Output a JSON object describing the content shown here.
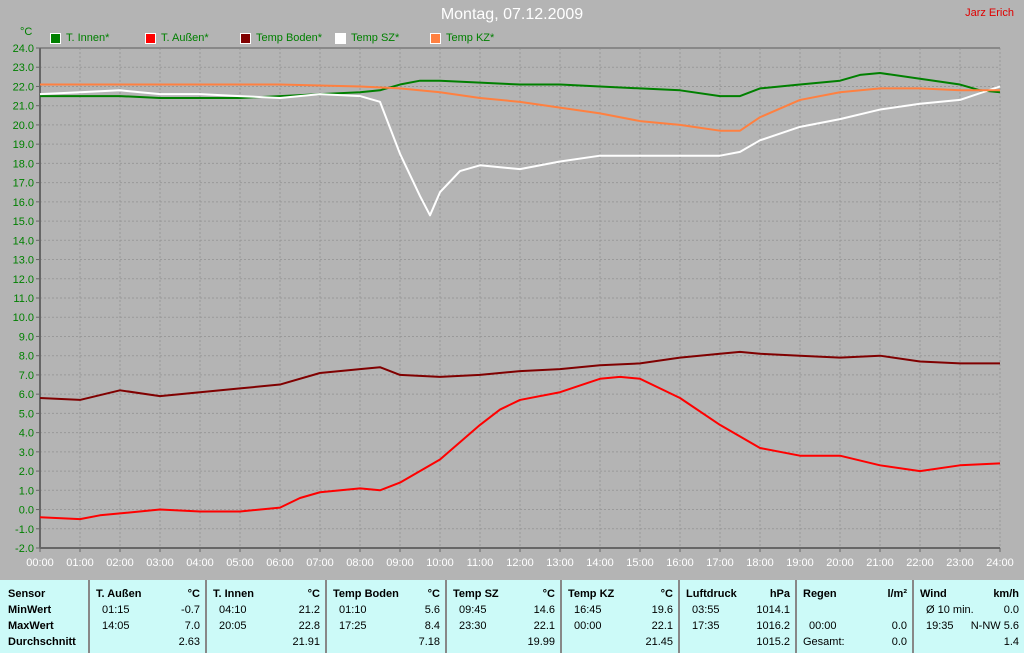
{
  "header": {
    "title": "Montag, 07.12.2009",
    "author": "Jarz Erich",
    "unit": "°C"
  },
  "chart_data": {
    "type": "line",
    "title": "Montag, 07.12.2009",
    "ylabel": "°C",
    "ylim": [
      -2,
      24
    ],
    "xlim": [
      "00:00",
      "24:00"
    ],
    "grid": true,
    "yticks": [
      "24.0",
      "23.0",
      "22.0",
      "21.0",
      "20.0",
      "19.0",
      "18.0",
      "17.0",
      "16.0",
      "15.0",
      "14.0",
      "13.0",
      "12.0",
      "11.0",
      "10.0",
      "9.0",
      "8.0",
      "7.0",
      "6.0",
      "5.0",
      "4.0",
      "3.0",
      "2.0",
      "1.0",
      "0.0",
      "-1.0",
      "-2.0"
    ],
    "xticks": [
      "00:00",
      "01:00",
      "02:00",
      "03:00",
      "04:00",
      "05:00",
      "06:00",
      "07:00",
      "08:00",
      "09:00",
      "10:00",
      "11:00",
      "12:00",
      "13:00",
      "14:00",
      "15:00",
      "16:00",
      "17:00",
      "18:00",
      "19:00",
      "20:00",
      "21:00",
      "22:00",
      "23:00",
      "24:00"
    ],
    "legend_placement": "top",
    "series": [
      {
        "name": "T. Innen*",
        "color": "#008000",
        "x": [
          0,
          1,
          2,
          3,
          4,
          5,
          6,
          7,
          8,
          8.5,
          9,
          9.5,
          10,
          11,
          12,
          13,
          14,
          15,
          16,
          17,
          17.5,
          18,
          19,
          20,
          20.5,
          21,
          22,
          23,
          23.5,
          24
        ],
        "y": [
          21.5,
          21.5,
          21.5,
          21.4,
          21.4,
          21.4,
          21.5,
          21.6,
          21.7,
          21.8,
          22.1,
          22.3,
          22.3,
          22.2,
          22.1,
          22.1,
          22.0,
          21.9,
          21.8,
          21.5,
          21.5,
          21.9,
          22.1,
          22.3,
          22.6,
          22.7,
          22.4,
          22.1,
          21.8,
          21.7
        ]
      },
      {
        "name": "T. Außen*",
        "color": "#ff0000",
        "x": [
          0,
          1,
          1.5,
          2,
          3,
          4,
          5,
          6,
          6.5,
          7,
          8,
          8.5,
          9,
          10,
          11,
          11.5,
          12,
          13,
          14,
          14.5,
          15,
          16,
          17,
          18,
          19,
          20,
          21,
          22,
          23,
          24
        ],
        "y": [
          -0.4,
          -0.5,
          -0.3,
          -0.2,
          0.0,
          -0.1,
          -0.1,
          0.1,
          0.6,
          0.9,
          1.1,
          1.0,
          1.4,
          2.6,
          4.4,
          5.2,
          5.7,
          6.1,
          6.8,
          6.9,
          6.8,
          5.8,
          4.4,
          3.2,
          2.8,
          2.8,
          2.3,
          2.0,
          2.3,
          2.4
        ]
      },
      {
        "name": "Temp Boden*",
        "color": "#800000",
        "x": [
          0,
          1,
          2,
          3,
          4,
          5,
          6,
          7,
          8,
          8.5,
          9,
          10,
          11,
          12,
          13,
          14,
          15,
          16,
          17,
          17.5,
          18,
          19,
          20,
          21,
          22,
          23,
          24
        ],
        "y": [
          5.8,
          5.7,
          6.2,
          5.9,
          6.1,
          6.3,
          6.5,
          7.1,
          7.3,
          7.4,
          7.0,
          6.9,
          7.0,
          7.2,
          7.3,
          7.5,
          7.6,
          7.9,
          8.1,
          8.2,
          8.1,
          8.0,
          7.9,
          8.0,
          7.7,
          7.6,
          7.6
        ]
      },
      {
        "name": "Temp SZ*",
        "color": "#ffffff",
        "x": [
          0,
          1,
          2,
          3,
          4,
          5,
          6,
          7,
          8,
          8.5,
          9,
          9.5,
          9.75,
          10,
          10.5,
          11,
          12,
          13,
          14,
          15,
          16,
          17,
          17.5,
          18,
          19,
          20,
          21,
          22,
          23,
          24
        ],
        "y": [
          21.6,
          21.7,
          21.8,
          21.6,
          21.6,
          21.5,
          21.4,
          21.6,
          21.5,
          21.2,
          18.5,
          16.3,
          15.3,
          16.5,
          17.6,
          17.9,
          17.7,
          18.1,
          18.4,
          18.4,
          18.4,
          18.4,
          18.6,
          19.2,
          19.9,
          20.3,
          20.8,
          21.1,
          21.3,
          22.0
        ]
      },
      {
        "name": "Temp KZ*",
        "color": "#ff8040",
        "x": [
          0,
          2,
          4,
          6,
          8,
          9,
          10,
          11,
          12,
          13,
          14,
          15,
          16,
          17,
          17.5,
          18,
          19,
          20,
          21,
          22,
          23,
          24
        ],
        "y": [
          22.1,
          22.1,
          22.1,
          22.1,
          22.0,
          21.9,
          21.7,
          21.4,
          21.2,
          20.9,
          20.6,
          20.2,
          20.0,
          19.7,
          19.7,
          20.4,
          21.3,
          21.7,
          21.9,
          21.9,
          21.8,
          21.8
        ]
      }
    ]
  },
  "table": {
    "row_labels": [
      "Sensor",
      "MinWert",
      "MaxWert",
      "Durchschnitt"
    ],
    "columns": [
      {
        "name": "T. Außen",
        "unit": "°C",
        "min_time": "01:15",
        "min": "-0.7",
        "max_time": "14:05",
        "max": "7.0",
        "avg": "2.63"
      },
      {
        "name": "T. Innen",
        "unit": "°C",
        "min_time": "04:10",
        "min": "21.2",
        "max_time": "20:05",
        "max": "22.8",
        "avg": "21.91"
      },
      {
        "name": "Temp Boden",
        "unit": "°C",
        "min_time": "01:10",
        "min": "5.6",
        "max_time": "17:25",
        "max": "8.4",
        "avg": "7.18"
      },
      {
        "name": "Temp SZ",
        "unit": "°C",
        "min_time": "09:45",
        "min": "14.6",
        "max_time": "23:30",
        "max": "22.1",
        "avg": "19.99"
      },
      {
        "name": "Temp KZ",
        "unit": "°C",
        "min_time": "16:45",
        "min": "19.6",
        "max_time": "00:00",
        "max": "22.1",
        "avg": "21.45"
      },
      {
        "name": "Luftdruck",
        "unit": "hPa",
        "min_time": "03:55",
        "min": "1014.1",
        "max_time": "17:35",
        "max": "1016.2",
        "avg": "1015.2"
      },
      {
        "name": "Regen",
        "unit": "l/m²",
        "min_time": "",
        "min": "",
        "max_time": "00:00",
        "max": "0.0",
        "avg_label": "Gesamt:",
        "avg": "0.0"
      },
      {
        "name": "Wind",
        "unit": "km/h",
        "min_time": "Ø 10 min.",
        "min": "0.0",
        "max_time": "19:35",
        "max": "N-NW 5.6",
        "avg": "1.4"
      }
    ]
  }
}
